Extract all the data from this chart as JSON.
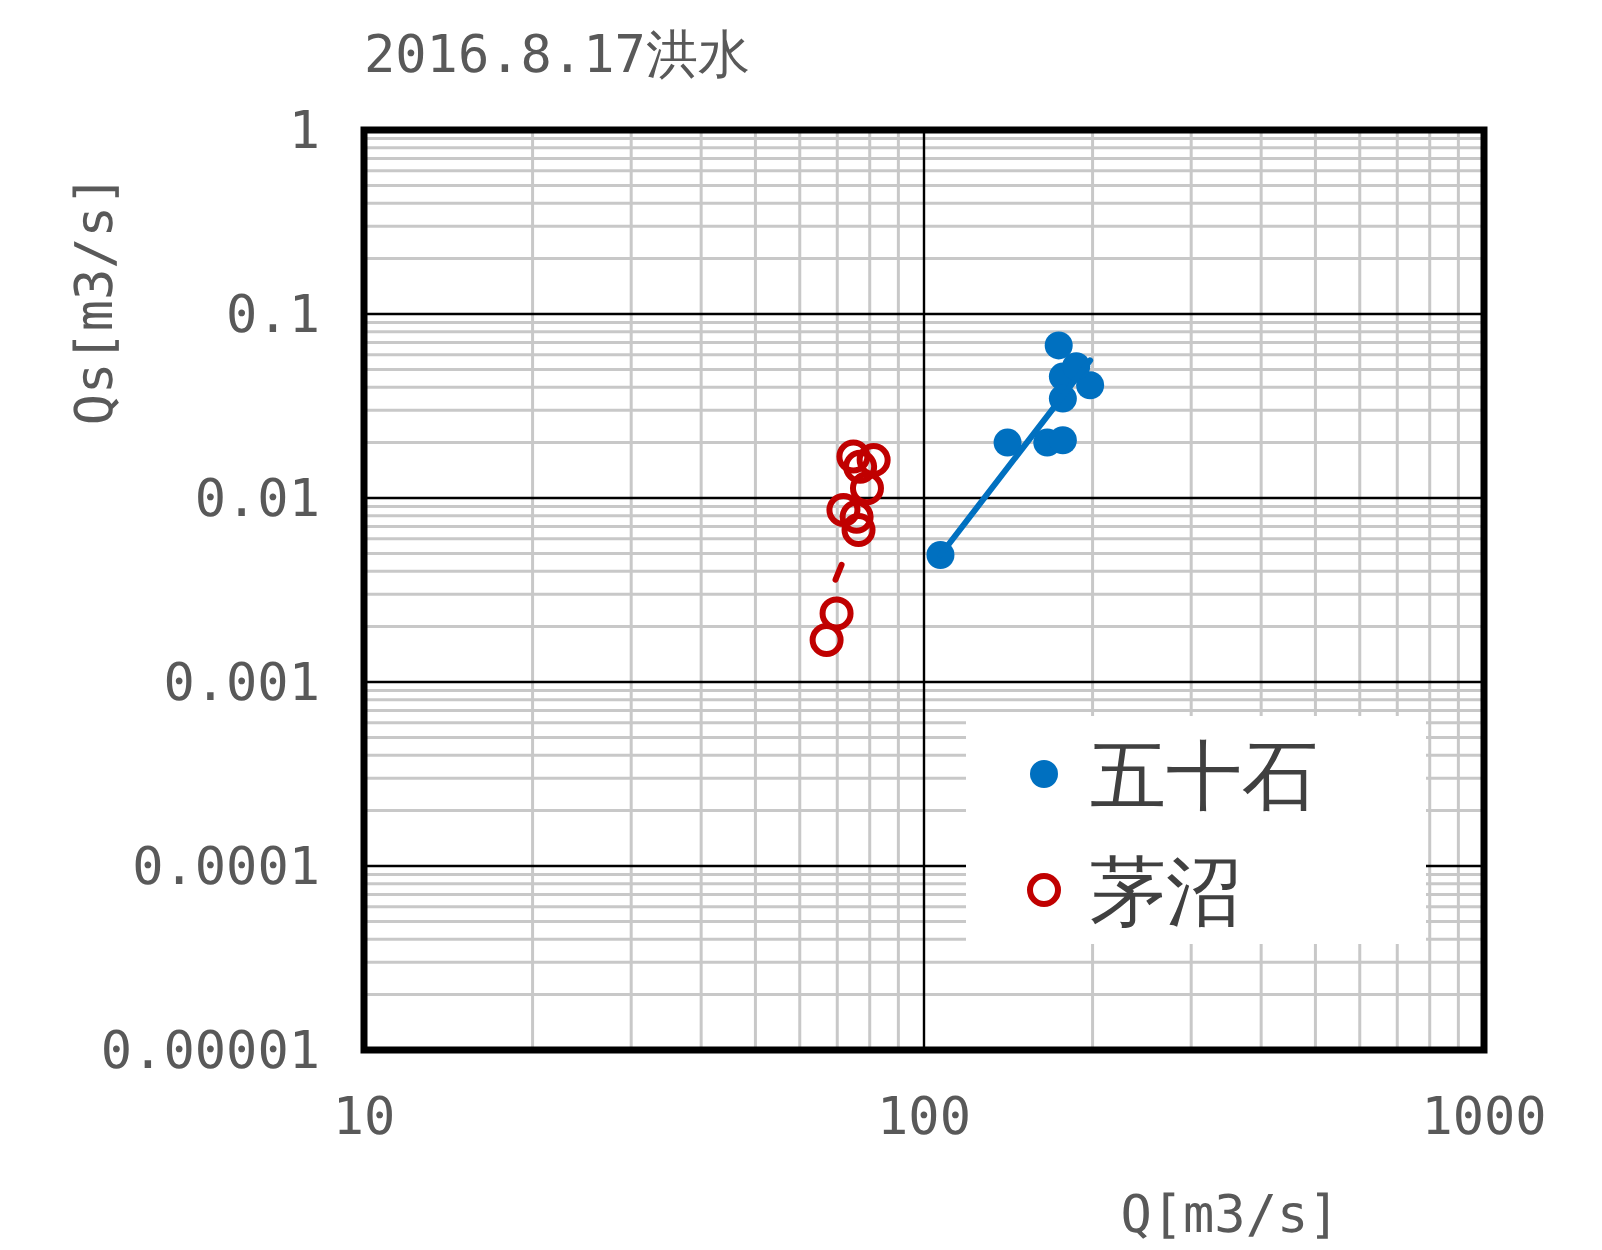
{
  "chart_data": {
    "type": "scatter",
    "title": "2016.8.17洪水",
    "xlabel": "Q[m3/s]",
    "ylabel": "Qs[m3/s]",
    "log": "xy",
    "grid": true,
    "legend": "bottom right",
    "xlim": [
      10,
      1000
    ],
    "xticks": [
      10,
      100,
      1000
    ],
    "ylim": [
      1e-05,
      1
    ],
    "yticks": [
      {
        "value": 1e-05,
        "label": "0.00001"
      },
      {
        "value": 0.0001,
        "label": "0.0001"
      },
      {
        "value": 0.001,
        "label": "0.001"
      },
      {
        "value": 0.01,
        "label": "0.01"
      },
      {
        "value": 0.1,
        "label": "0.1"
      },
      {
        "value": 1,
        "label": "1"
      }
    ],
    "series": [
      {
        "name": "五十石",
        "color": "#0070c0",
        "marker": "circle",
        "x": [
          107,
          141,
          166,
          177,
          174,
          177,
          198,
          177,
          187
        ],
        "values": [
          0.0049,
          0.02,
          0.02,
          0.0206,
          0.0675,
          0.0457,
          0.041,
          0.0347,
          0.052
        ]
      },
      {
        "name": "茅沼",
        "color": "#c00000",
        "marker": "circle",
        "x": [
          74.8,
          81.3,
          76.9,
          79.1,
          71.8,
          75.8,
          76.4,
          69.8,
          67
        ],
        "values": [
          0.0168,
          0.0161,
          0.0148,
          0.0113,
          0.0086,
          0.0079,
          0.0067,
          0.00236,
          0.00169
        ]
      },
      {
        "type": "line",
        "color": "#0070c0",
        "line_style": "solid",
        "x": [
          107,
          198
        ],
        "values": [
          0.0049,
          0.056
        ]
      },
      {
        "type": "line",
        "color": "#c00000",
        "line_style": "dashed",
        "x": [
          69.5,
          71.4
        ],
        "values": [
          0.0036,
          0.0044
        ]
      }
    ]
  }
}
